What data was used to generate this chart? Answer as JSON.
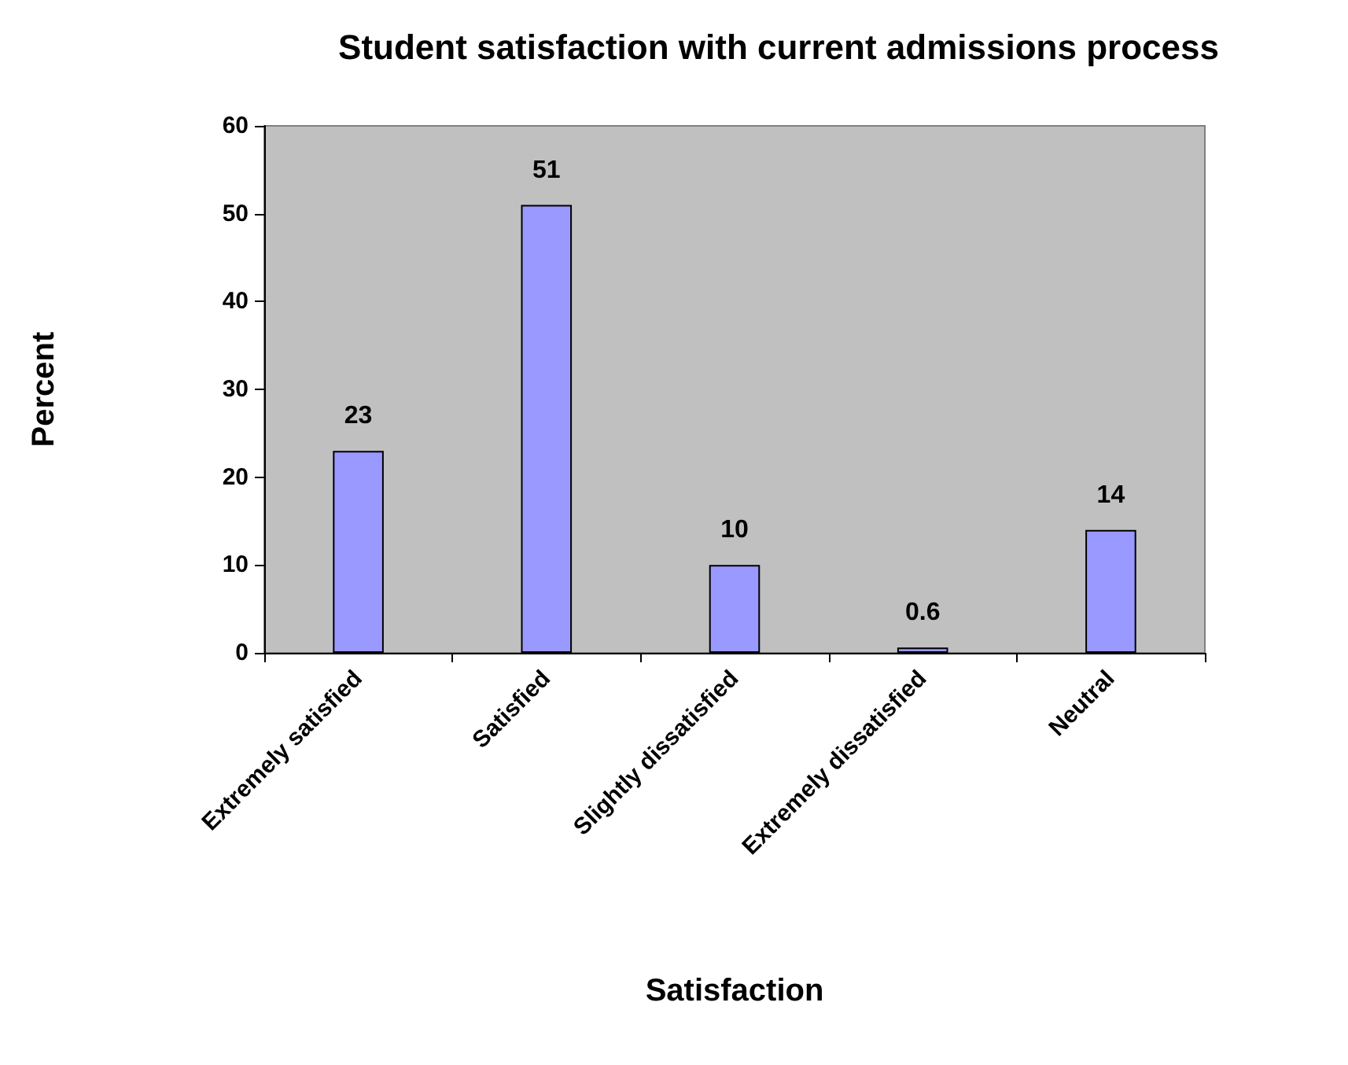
{
  "chart_data": {
    "type": "bar",
    "title": "Student satisfaction with current admissions process",
    "xlabel": "Satisfaction",
    "ylabel": "Percent",
    "categories": [
      "Extremely satisfied",
      "Satisfied",
      "Slightly dissatisfied",
      "Extremely dissatisfied",
      "Neutral"
    ],
    "values": [
      23,
      51,
      10,
      0.6,
      14
    ],
    "color": "#9999ff",
    "ylim": [
      0,
      60
    ],
    "yticks": [
      0,
      10,
      20,
      30,
      40,
      50,
      60
    ],
    "grid": false,
    "data_labels": true
  }
}
